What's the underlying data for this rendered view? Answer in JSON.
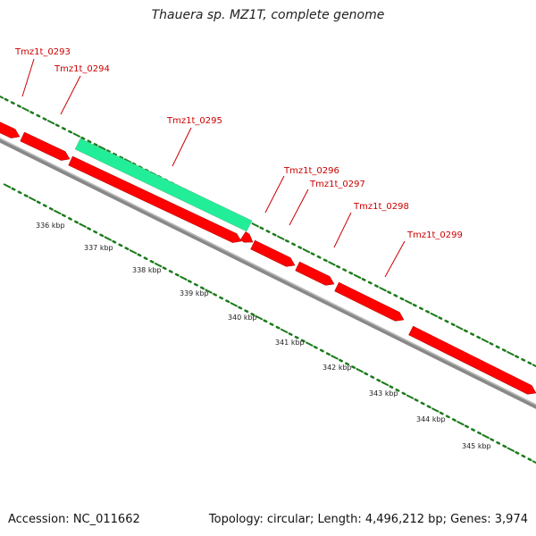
{
  "title": "Thauera sp. MZ1T, complete genome",
  "footer": {
    "accession": "Accession: NC_011662",
    "topology": "Topology: circular; Length: 4,496,212 bp; Genes: 3,974"
  },
  "colors": {
    "gene_forward": "#ff0000",
    "gene_selected": "#22ee99",
    "backbone": "#888888",
    "gc_ticks": "#1a7a1a",
    "label": "#cc0000"
  },
  "scale": {
    "unit": "kbp",
    "ticks": [
      336,
      337,
      338,
      339,
      340,
      341,
      342,
      343,
      344,
      345
    ]
  },
  "genes": [
    {
      "name": "Tmz1t_0293",
      "selected": false
    },
    {
      "name": "Tmz1t_0294",
      "selected": false
    },
    {
      "name": "Tmz1t_0295",
      "selected": true
    },
    {
      "name": "Tmz1t_0296",
      "selected": false
    },
    {
      "name": "Tmz1t_0297",
      "selected": false
    },
    {
      "name": "Tmz1t_0298",
      "selected": false
    },
    {
      "name": "Tmz1t_0299",
      "selected": false
    }
  ]
}
